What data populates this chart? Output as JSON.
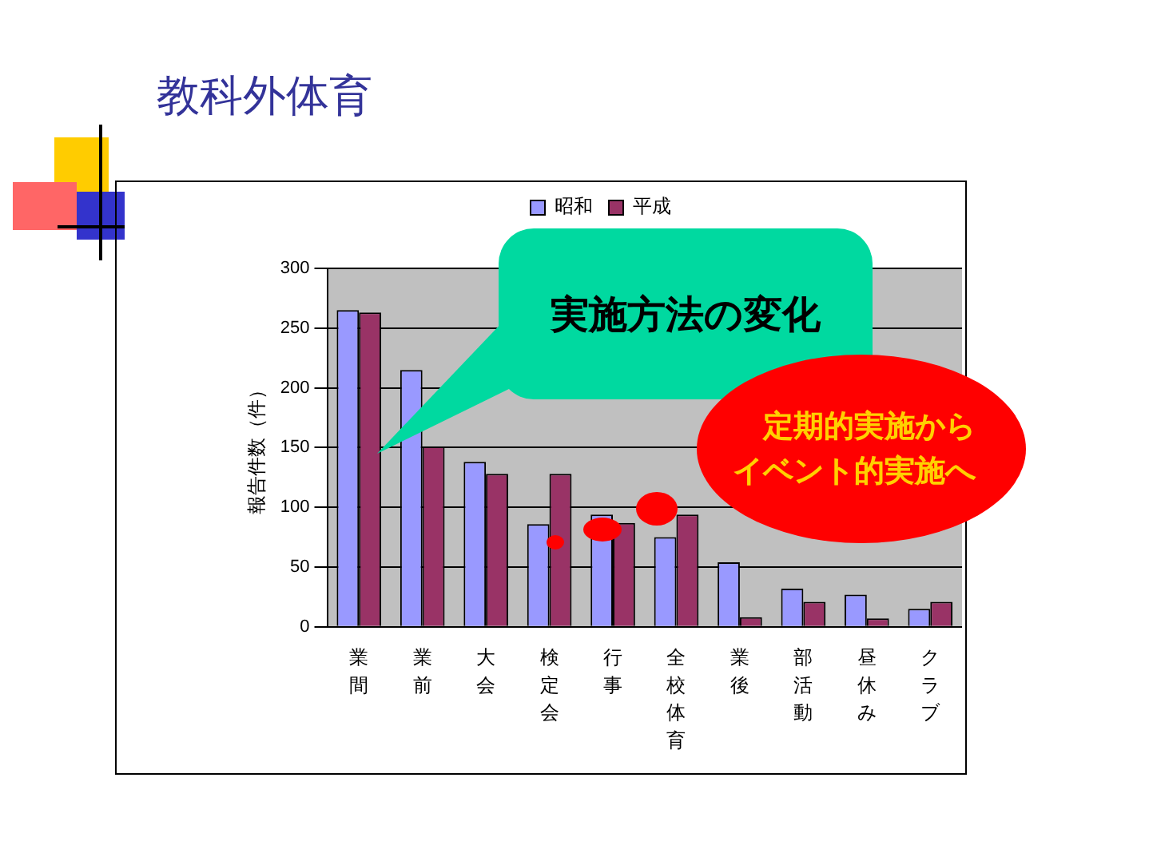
{
  "chart_data": {
    "type": "bar",
    "title": "教科外体育",
    "ylabel": "報告件数（件）",
    "categories": [
      "業間",
      "業前",
      "大会",
      "検定会",
      "行事",
      "全校体育",
      "業後",
      "部活動",
      "昼休み",
      "クラブ"
    ],
    "series": [
      {
        "name": "昭和",
        "color": "#9999ff",
        "values": [
          265,
          215,
          138,
          86,
          94,
          75,
          54,
          32,
          27,
          15
        ]
      },
      {
        "name": "平成",
        "color": "#993366",
        "values": [
          263,
          151,
          128,
          128,
          87,
          94,
          8,
          21,
          7,
          21
        ]
      }
    ],
    "ylim": [
      0,
      300
    ],
    "yticks": [
      0,
      50,
      100,
      150,
      200,
      250,
      300
    ],
    "grid": "y",
    "legend": "top",
    "annotations": [
      "実施方法の変化",
      "定期的実施からイベント的実施へ"
    ]
  }
}
